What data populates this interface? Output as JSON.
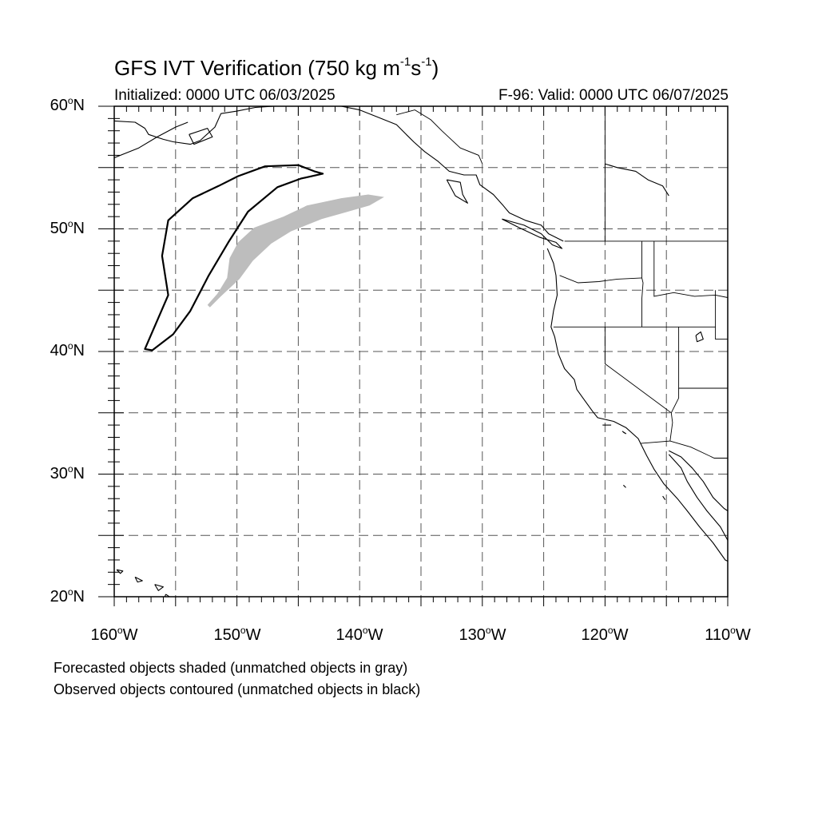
{
  "title": {
    "main": "GFS IVT Verification (750 kg m",
    "sup1": "-1",
    "mid": "s",
    "sup2": "-1",
    "end": ")"
  },
  "initialized": "Initialized: 0000 UTC 06/03/2025",
  "valid": "F-96: Valid: 0000 UTC 06/07/2025",
  "lat_labels": [
    {
      "num": "60",
      "deg": "o",
      "hemi": "N"
    },
    {
      "num": "50",
      "deg": "o",
      "hemi": "N"
    },
    {
      "num": "40",
      "deg": "o",
      "hemi": "N"
    },
    {
      "num": "30",
      "deg": "o",
      "hemi": "N"
    },
    {
      "num": "20",
      "deg": "o",
      "hemi": "N"
    }
  ],
  "lon_labels": [
    {
      "num": "160",
      "deg": "o",
      "hemi": "W"
    },
    {
      "num": "150",
      "deg": "o",
      "hemi": "W"
    },
    {
      "num": "140",
      "deg": "o",
      "hemi": "W"
    },
    {
      "num": "130",
      "deg": "o",
      "hemi": "W"
    },
    {
      "num": "120",
      "deg": "o",
      "hemi": "W"
    },
    {
      "num": "110",
      "deg": "o",
      "hemi": "W"
    }
  ],
  "map": {
    "lon_range": [
      -160,
      -110
    ],
    "lat_range": [
      20,
      60
    ],
    "grid_spacing_deg": 5,
    "grid_style": "dashed",
    "forecast_object_color": "#bdbdbd",
    "observed_object_color": "#000000",
    "forecast_object": [
      [
        -152.4,
        43.8
      ],
      [
        -151.6,
        44.7
      ],
      [
        -150.8,
        46.0
      ],
      [
        -150.6,
        47.6
      ],
      [
        -149.9,
        48.9
      ],
      [
        -148.6,
        50.1
      ],
      [
        -146.2,
        51.0
      ],
      [
        -144.3,
        51.9
      ],
      [
        -141.5,
        52.5
      ],
      [
        -139.3,
        52.8
      ],
      [
        -138.0,
        52.6
      ],
      [
        -139.2,
        51.9
      ],
      [
        -141.3,
        51.3
      ],
      [
        -143.1,
        50.8
      ],
      [
        -145.6,
        49.8
      ],
      [
        -147.2,
        48.8
      ],
      [
        -148.7,
        47.4
      ],
      [
        -149.8,
        45.9
      ],
      [
        -151.3,
        44.5
      ],
      [
        -152.2,
        43.6
      ]
    ],
    "observed_object": [
      [
        -156.9,
        40.1
      ],
      [
        -155.2,
        41.4
      ],
      [
        -153.8,
        43.3
      ],
      [
        -152.3,
        46.2
      ],
      [
        -150.7,
        48.9
      ],
      [
        -149.1,
        51.4
      ],
      [
        -146.7,
        53.4
      ],
      [
        -144.8,
        54.1
      ],
      [
        -143.0,
        54.5
      ],
      [
        -143.7,
        54.7
      ],
      [
        -145.0,
        55.2
      ],
      [
        -147.7,
        55.1
      ],
      [
        -149.9,
        54.3
      ],
      [
        -151.5,
        53.5
      ],
      [
        -153.6,
        52.5
      ],
      [
        -155.6,
        50.7
      ],
      [
        -156.1,
        47.8
      ],
      [
        -155.6,
        44.6
      ],
      [
        -157.5,
        40.2
      ]
    ],
    "coastlines": [
      [
        [
          -160,
          58.8
        ],
        [
          -158.3,
          58.7
        ],
        [
          -157.5,
          58.2
        ],
        [
          -157.2,
          57.7
        ],
        [
          -156.0,
          57.3
        ],
        [
          -155.2,
          57.1
        ],
        [
          -153.8,
          56.9
        ],
        [
          -153.0,
          57.2
        ],
        [
          -151.8,
          58.3
        ],
        [
          -151.3,
          59.4
        ],
        [
          -150.0,
          59.6
        ],
        [
          -148.5,
          59.9
        ],
        [
          -147.0,
          60.0
        ]
      ],
      [
        [
          -160,
          55.8
        ],
        [
          -158.0,
          56.6
        ],
        [
          -156.5,
          57.5
        ],
        [
          -155.0,
          58.3
        ],
        [
          -154.0,
          58.7
        ]
      ],
      [
        [
          -153.9,
          57.7
        ],
        [
          -152.4,
          58.2
        ],
        [
          -152.0,
          57.5
        ],
        [
          -153.5,
          56.9
        ],
        [
          -153.9,
          57.7
        ]
      ],
      [
        [
          -141.5,
          60.0
        ],
        [
          -140.0,
          59.7
        ],
        [
          -138.5,
          59.1
        ],
        [
          -137.0,
          58.5
        ],
        [
          -136.3,
          57.8
        ],
        [
          -135.6,
          57.1
        ],
        [
          -134.7,
          56.3
        ],
        [
          -133.6,
          55.5
        ],
        [
          -132.7,
          54.7
        ],
        [
          -131.5,
          54.4
        ],
        [
          -130.5,
          54.4
        ],
        [
          -130.2,
          53.6
        ],
        [
          -129.1,
          52.8
        ],
        [
          -128.3,
          51.9
        ],
        [
          -127.8,
          51.3
        ],
        [
          -126.5,
          50.7
        ],
        [
          -125.2,
          50.3
        ],
        [
          -124.6,
          49.6
        ],
        [
          -123.4,
          49.0
        ]
      ],
      [
        [
          -132.9,
          54.0
        ],
        [
          -131.8,
          53.8
        ],
        [
          -131.6,
          52.8
        ],
        [
          -131.2,
          52.1
        ],
        [
          -132.2,
          52.7
        ],
        [
          -132.9,
          54.0
        ]
      ],
      [
        [
          -128.4,
          50.8
        ],
        [
          -126.6,
          50.3
        ],
        [
          -125.2,
          49.6
        ],
        [
          -124.3,
          48.7
        ],
        [
          -123.5,
          48.4
        ],
        [
          -124.0,
          48.9
        ],
        [
          -125.3,
          49.3
        ],
        [
          -127.0,
          50.1
        ],
        [
          -128.4,
          50.8
        ]
      ],
      [
        [
          -124.7,
          48.4
        ],
        [
          -124.2,
          47.2
        ],
        [
          -124.0,
          46.2
        ],
        [
          -123.9,
          44.6
        ],
        [
          -124.2,
          43.3
        ],
        [
          -124.4,
          42.0
        ],
        [
          -124.1,
          41.2
        ],
        [
          -123.8,
          39.8
        ],
        [
          -123.3,
          38.6
        ],
        [
          -122.5,
          37.7
        ],
        [
          -122.3,
          36.9
        ],
        [
          -121.8,
          36.2
        ],
        [
          -121.0,
          35.1
        ],
        [
          -120.6,
          34.6
        ],
        [
          -119.3,
          34.3
        ],
        [
          -118.3,
          33.8
        ],
        [
          -117.3,
          32.9
        ],
        [
          -117.1,
          32.5
        ],
        [
          -116.6,
          31.5
        ],
        [
          -116.0,
          30.4
        ],
        [
          -115.2,
          29.2
        ],
        [
          -114.1,
          28.0
        ],
        [
          -113.3,
          27.0
        ],
        [
          -112.3,
          25.7
        ],
        [
          -111.2,
          24.4
        ],
        [
          -110.2,
          23.0
        ],
        [
          -110.0,
          22.9
        ]
      ],
      [
        [
          -114.8,
          31.6
        ],
        [
          -113.8,
          30.5
        ],
        [
          -113.3,
          29.4
        ],
        [
          -112.5,
          28.1
        ],
        [
          -111.7,
          27.0
        ],
        [
          -110.6,
          25.7
        ],
        [
          -110.0,
          24.6
        ]
      ],
      [
        [
          -114.8,
          31.9
        ],
        [
          -113.8,
          31.4
        ],
        [
          -112.9,
          30.5
        ],
        [
          -112.0,
          29.4
        ],
        [
          -111.2,
          28.1
        ],
        [
          -110.3,
          27.2
        ],
        [
          -110.0,
          27.0
        ]
      ],
      [
        [
          -155.8,
          20.2
        ],
        [
          -155.2,
          19.8
        ],
        [
          -155.6,
          19.2
        ],
        [
          -156.0,
          19.6
        ],
        [
          -155.8,
          20.2
        ]
      ],
      [
        [
          -156.7,
          21.0
        ],
        [
          -156.0,
          20.8
        ],
        [
          -156.4,
          20.5
        ],
        [
          -156.7,
          21.0
        ]
      ],
      [
        [
          -158.3,
          21.6
        ],
        [
          -157.7,
          21.3
        ],
        [
          -158.1,
          21.2
        ],
        [
          -158.3,
          21.6
        ]
      ],
      [
        [
          -159.8,
          22.2
        ],
        [
          -159.3,
          22.1
        ],
        [
          -159.5,
          21.9
        ],
        [
          -159.8,
          22.2
        ]
      ],
      [
        [
          -112.6,
          41.3
        ],
        [
          -112.2,
          41.6
        ],
        [
          -112.0,
          41.0
        ],
        [
          -112.5,
          40.8
        ],
        [
          -112.6,
          41.3
        ]
      ],
      [
        [
          -118.6,
          33.5
        ],
        [
          -118.3,
          33.3
        ],
        [
          -118.5,
          33.4
        ]
      ],
      [
        [
          -120.2,
          34.0
        ],
        [
          -119.5,
          34.0
        ]
      ],
      [
        [
          -118.5,
          29.1
        ],
        [
          -118.3,
          28.9
        ]
      ],
      [
        [
          -115.3,
          28.2
        ],
        [
          -115.1,
          27.9
        ]
      ],
      [
        [
          -120.0,
          55.3
        ],
        [
          -119.0,
          55.0
        ],
        [
          -117.5,
          54.7
        ],
        [
          -116.5,
          54.0
        ],
        [
          -115.3,
          53.5
        ],
        [
          -114.8,
          52.7
        ]
      ]
    ],
    "borders": [
      [
        [
          -141.0,
          60.0
        ],
        [
          -141.0,
          59.8
        ]
      ],
      [
        [
          -137.0,
          59.3
        ],
        [
          -135.5,
          59.7
        ],
        [
          -134.2,
          58.9
        ],
        [
          -133.3,
          58.0
        ],
        [
          -131.8,
          56.6
        ],
        [
          -130.3,
          56.0
        ],
        [
          -130.0,
          55.3
        ]
      ],
      [
        [
          -120.0,
          60.0
        ],
        [
          -120.0,
          49.0
        ]
      ],
      [
        [
          -123.3,
          49.0
        ],
        [
          -110.0,
          49.0
        ]
      ],
      [
        [
          -117.0,
          49.0
        ],
        [
          -117.0,
          46.0
        ],
        [
          -116.9,
          45.6
        ],
        [
          -117.0,
          44.3
        ],
        [
          -117.0,
          42.0
        ]
      ],
      [
        [
          -123.7,
          46.2
        ],
        [
          -122.2,
          45.6
        ],
        [
          -120.5,
          45.7
        ],
        [
          -119.0,
          45.9
        ],
        [
          -117.0,
          46.0
        ]
      ],
      [
        [
          -124.2,
          42.0
        ],
        [
          -111.0,
          42.0
        ]
      ],
      [
        [
          -120.0,
          42.0
        ],
        [
          -120.0,
          39.0
        ],
        [
          -114.6,
          35.0
        ]
      ],
      [
        [
          -114.0,
          42.0
        ],
        [
          -114.0,
          37.0
        ],
        [
          -110.0,
          37.0
        ]
      ],
      [
        [
          -116.0,
          49.0
        ],
        [
          -116.0,
          44.5
        ],
        [
          -114.4,
          44.8
        ],
        [
          -112.7,
          44.5
        ],
        [
          -111.0,
          44.6
        ],
        [
          -110.0,
          44.4
        ]
      ],
      [
        [
          -111.0,
          45.0
        ],
        [
          -111.0,
          41.0
        ],
        [
          -110.0,
          41.0
        ]
      ],
      [
        [
          -114.6,
          35.0
        ],
        [
          -114.5,
          34.2
        ],
        [
          -114.7,
          32.7
        ],
        [
          -117.1,
          32.5
        ]
      ],
      [
        [
          -114.7,
          32.7
        ],
        [
          -113.0,
          32.2
        ],
        [
          -111.1,
          31.3
        ],
        [
          -110.0,
          31.3
        ]
      ],
      [
        [
          -114.0,
          37.0
        ],
        [
          -114.0,
          36.2
        ],
        [
          -114.6,
          35.0
        ]
      ]
    ]
  }
}
